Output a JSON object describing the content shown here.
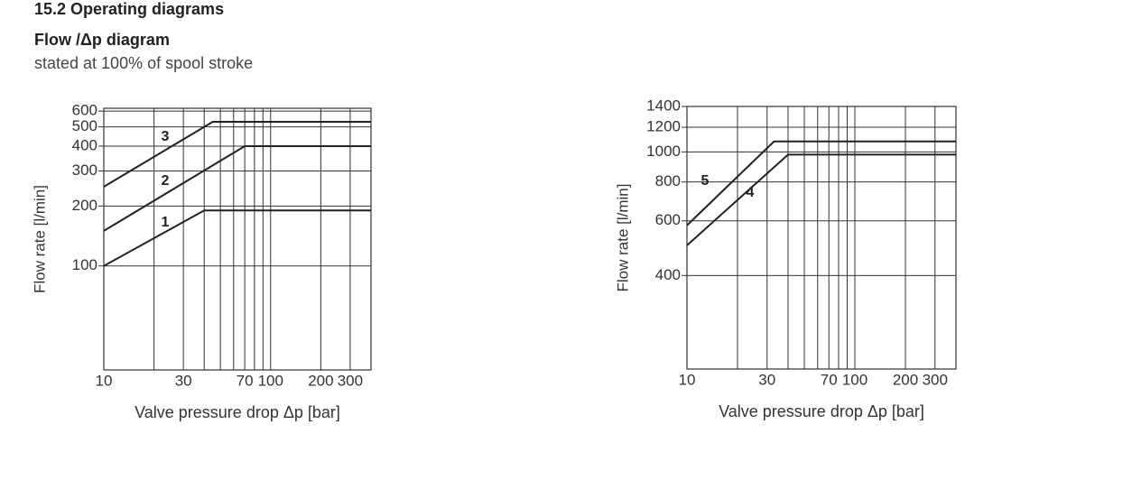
{
  "header": {
    "section": "15.2 Operating diagrams",
    "title": "Flow /Δp diagram",
    "subtitle": "stated at 100% of spool stroke"
  },
  "chart_data": [
    {
      "type": "line",
      "xlabel": "Valve pressure drop Δp [bar]",
      "ylabel": "Flow rate [l/min]",
      "log_x": true,
      "log_y": true,
      "grid": true,
      "xlim": [
        10,
        400
      ],
      "xticks": [
        10,
        30,
        70,
        100,
        200,
        300
      ],
      "minor_xticks": [
        20,
        40,
        50,
        60,
        80,
        90
      ],
      "ylim": [
        30,
        620
      ],
      "yticks": [
        100,
        200,
        300,
        400,
        500,
        600
      ],
      "series": [
        {
          "name": "1",
          "color": "#222222",
          "x": [
            10,
            40,
            400
          ],
          "values": [
            100,
            190,
            190
          ]
        },
        {
          "name": "2",
          "color": "#222222",
          "x": [
            10,
            70,
            400
          ],
          "values": [
            150,
            400,
            400
          ]
        },
        {
          "name": "3",
          "color": "#222222",
          "x": [
            10,
            45,
            400
          ],
          "values": [
            250,
            530,
            530
          ]
        }
      ]
    },
    {
      "type": "line",
      "xlabel": "Valve pressure drop Δp [bar]",
      "ylabel": "Flow rate [l/min]",
      "log_x": true,
      "log_y": true,
      "grid": true,
      "xlim": [
        10,
        400
      ],
      "xticks": [
        10,
        30,
        70,
        100,
        200,
        300
      ],
      "minor_xticks": [
        20,
        40,
        50,
        60,
        80,
        90
      ],
      "ylim": [
        200,
        1400
      ],
      "yticks": [
        400,
        600,
        800,
        1000,
        1200,
        1400
      ],
      "series": [
        {
          "name": "5",
          "color": "#222222",
          "x": [
            10,
            33,
            400
          ],
          "values": [
            580,
            1080,
            1080
          ]
        },
        {
          "name": "4",
          "color": "#222222",
          "x": [
            10,
            40,
            400
          ],
          "values": [
            500,
            980,
            980
          ]
        }
      ]
    }
  ]
}
